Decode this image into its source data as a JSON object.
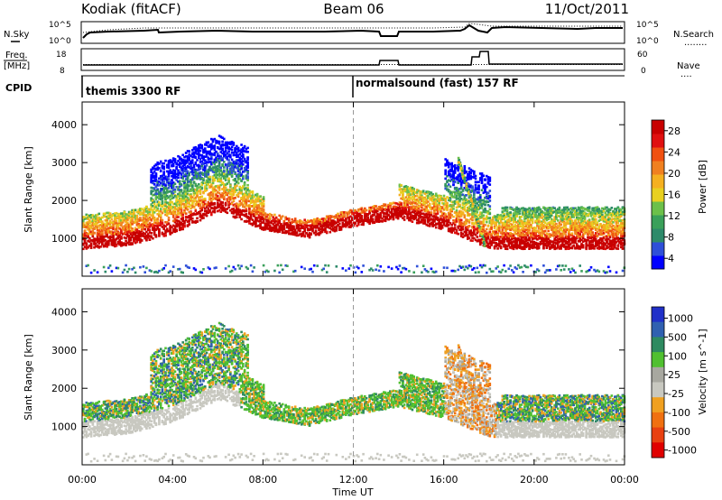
{
  "header": {
    "station": "Kodiak (fitACF)",
    "beam": "Beam 06",
    "date": "11/Oct/2011"
  },
  "left_labels": {
    "nsky": "N.Sky",
    "freq_line1": "Freq.",
    "freq_line2": "[MHz]",
    "cpid": "CPID"
  },
  "right_labels": {
    "nsearch": "N.Search",
    "nsearch_dots": "........",
    "nave": "Nave",
    "nave_dots": "...."
  },
  "noise_axis": {
    "left_ticks": [
      "10^5",
      "10^0"
    ],
    "right_ticks": [
      "10^5",
      "10^0"
    ]
  },
  "freq_axis": {
    "left_ticks": [
      "18",
      "8"
    ],
    "right_ticks": [
      "60",
      "0"
    ]
  },
  "cpid": [
    {
      "label": "themis 3300 RF",
      "start_hour": 0
    },
    {
      "label": "normalsound (fast) 157 RF",
      "start_hour": 12
    }
  ],
  "time_axis": {
    "label": "Time UT",
    "ticks": [
      "00:00",
      "04:00",
      "08:00",
      "12:00",
      "16:00",
      "20:00",
      "00:00"
    ],
    "tick_hours": [
      0,
      4,
      8,
      12,
      16,
      20,
      24
    ]
  },
  "range_axis": {
    "label": "Slant Range [km]",
    "ticks": [
      "1000",
      "2000",
      "3000",
      "4000"
    ],
    "tick_values": [
      1000,
      2000,
      3000,
      4000
    ],
    "range": [
      0,
      4600
    ]
  },
  "colors": {
    "power": [
      "#0000ff",
      "#2e4fd8",
      "#2d8a6a",
      "#3aa05a",
      "#6cc04a",
      "#e8d020",
      "#f5b020",
      "#f08020",
      "#f05010",
      "#e01010",
      "#c80000"
    ],
    "velocity": [
      "#2030c8",
      "#3060b0",
      "#2e8a60",
      "#50c030",
      "#a8a8a0",
      "#c8c8c0",
      "#f0a020",
      "#f07010",
      "#e84010",
      "#e00000"
    ]
  },
  "chart_data": [
    {
      "type": "heatmap",
      "quantity": "Power",
      "colorbar_label": "Power [dB]",
      "colorbar_ticks": [
        "4",
        "8",
        "12",
        "16",
        "20",
        "24",
        "28"
      ],
      "colorbar_values": [
        4,
        8,
        12,
        16,
        20,
        24,
        28
      ],
      "xlabel": "Time UT",
      "ylabel": "Slant Range [km]",
      "xlim_hours": [
        0,
        24
      ],
      "ylim": [
        0,
        4600
      ],
      "main_band": [
        {
          "hour": 0.0,
          "range_km": 900
        },
        {
          "hour": 2.0,
          "range_km": 1000
        },
        {
          "hour": 4.0,
          "range_km": 1300
        },
        {
          "hour": 6.0,
          "range_km": 1900
        },
        {
          "hour": 8.0,
          "range_km": 1400
        },
        {
          "hour": 10.0,
          "range_km": 1200
        },
        {
          "hour": 12.0,
          "range_km": 1500
        },
        {
          "hour": 14.0,
          "range_km": 1700
        },
        {
          "hour": 16.0,
          "range_km": 1400
        },
        {
          "hour": 18.0,
          "range_km": 900
        },
        {
          "hour": 20.0,
          "range_km": 900
        },
        {
          "hour": 22.0,
          "range_km": 900
        },
        {
          "hour": 24.0,
          "range_km": 900
        }
      ]
    },
    {
      "type": "heatmap",
      "quantity": "Velocity",
      "colorbar_label": "Velocity [m s^-1]",
      "colorbar_ticks": [
        "1000",
        "500",
        "100",
        "25",
        "-25",
        "-100",
        "-500",
        "-1000"
      ],
      "colorbar_values": [
        1000,
        500,
        100,
        25,
        -25,
        -100,
        -500,
        -1000
      ],
      "xlabel": "Time UT",
      "ylabel": "Slant Range [km]",
      "xlim_hours": [
        0,
        24
      ],
      "ylim": [
        0,
        4600
      ]
    }
  ]
}
